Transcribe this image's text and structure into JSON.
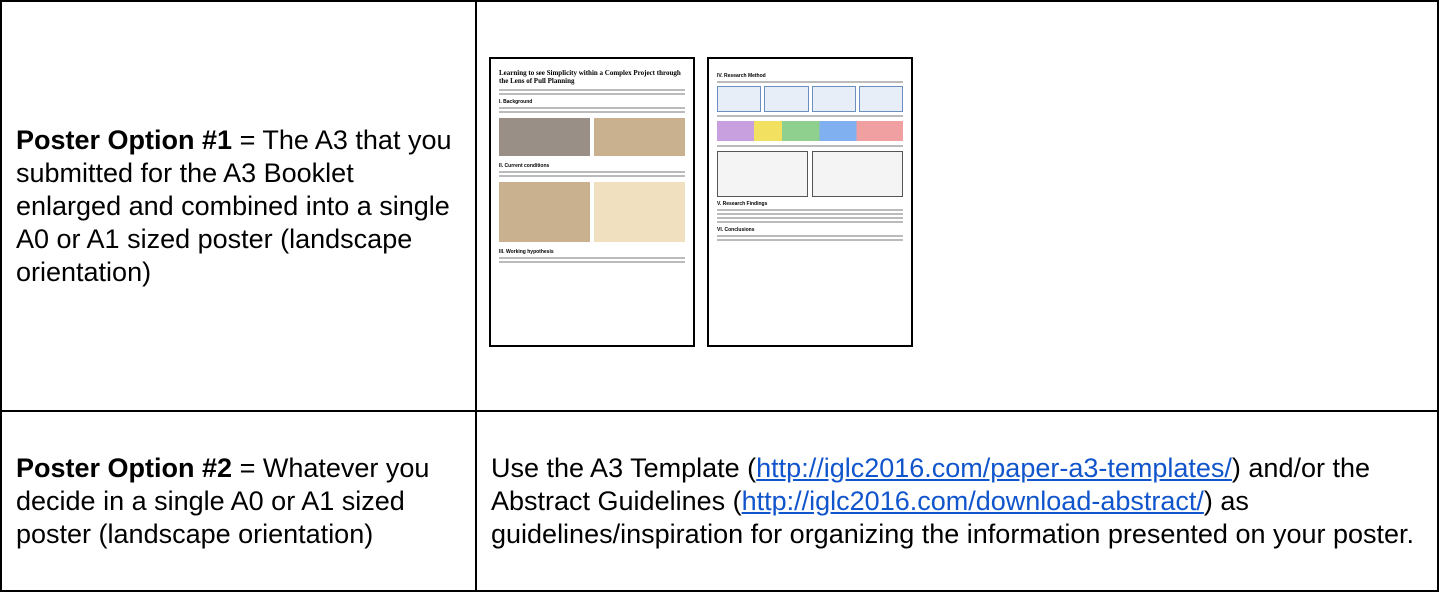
{
  "table": {
    "rows": [
      [
        {
          "bold": "Poster Option #1",
          "text": "= The A3 that you submitted for the A3 Booklet enlarged and combined into a single A0 or A1 sized poster (landscape orientation)"
        },
        {
          "posters": [
            {
              "title": "Learning to see Simplicity within a Complex Project through the Lens of Pull Planning",
              "headings": [
                "I. Background",
                "II. Current conditions",
                "III. Working hypothesis"
              ]
            },
            {
              "headings": [
                "IV. Research Method",
                "V. Research Findings",
                "VI. Conclusions"
              ]
            }
          ]
        }
      ],
      [
        {
          "bold": "Poster Option #2",
          "text": "= Whatever you decide in a single A0 or A1 sized poster (landscape orientation)"
        },
        {
          "parts": [
            "Use the A3 Template (",
            "http://iglc2016.com/paper-a3-templates/",
            ") and/or the Abstract Guidelines (",
            "http://iglc2016.com/download-abstract/",
            ") as guidelines/inspiration for organizing the information presented on your poster."
          ]
        }
      ]
    ]
  }
}
